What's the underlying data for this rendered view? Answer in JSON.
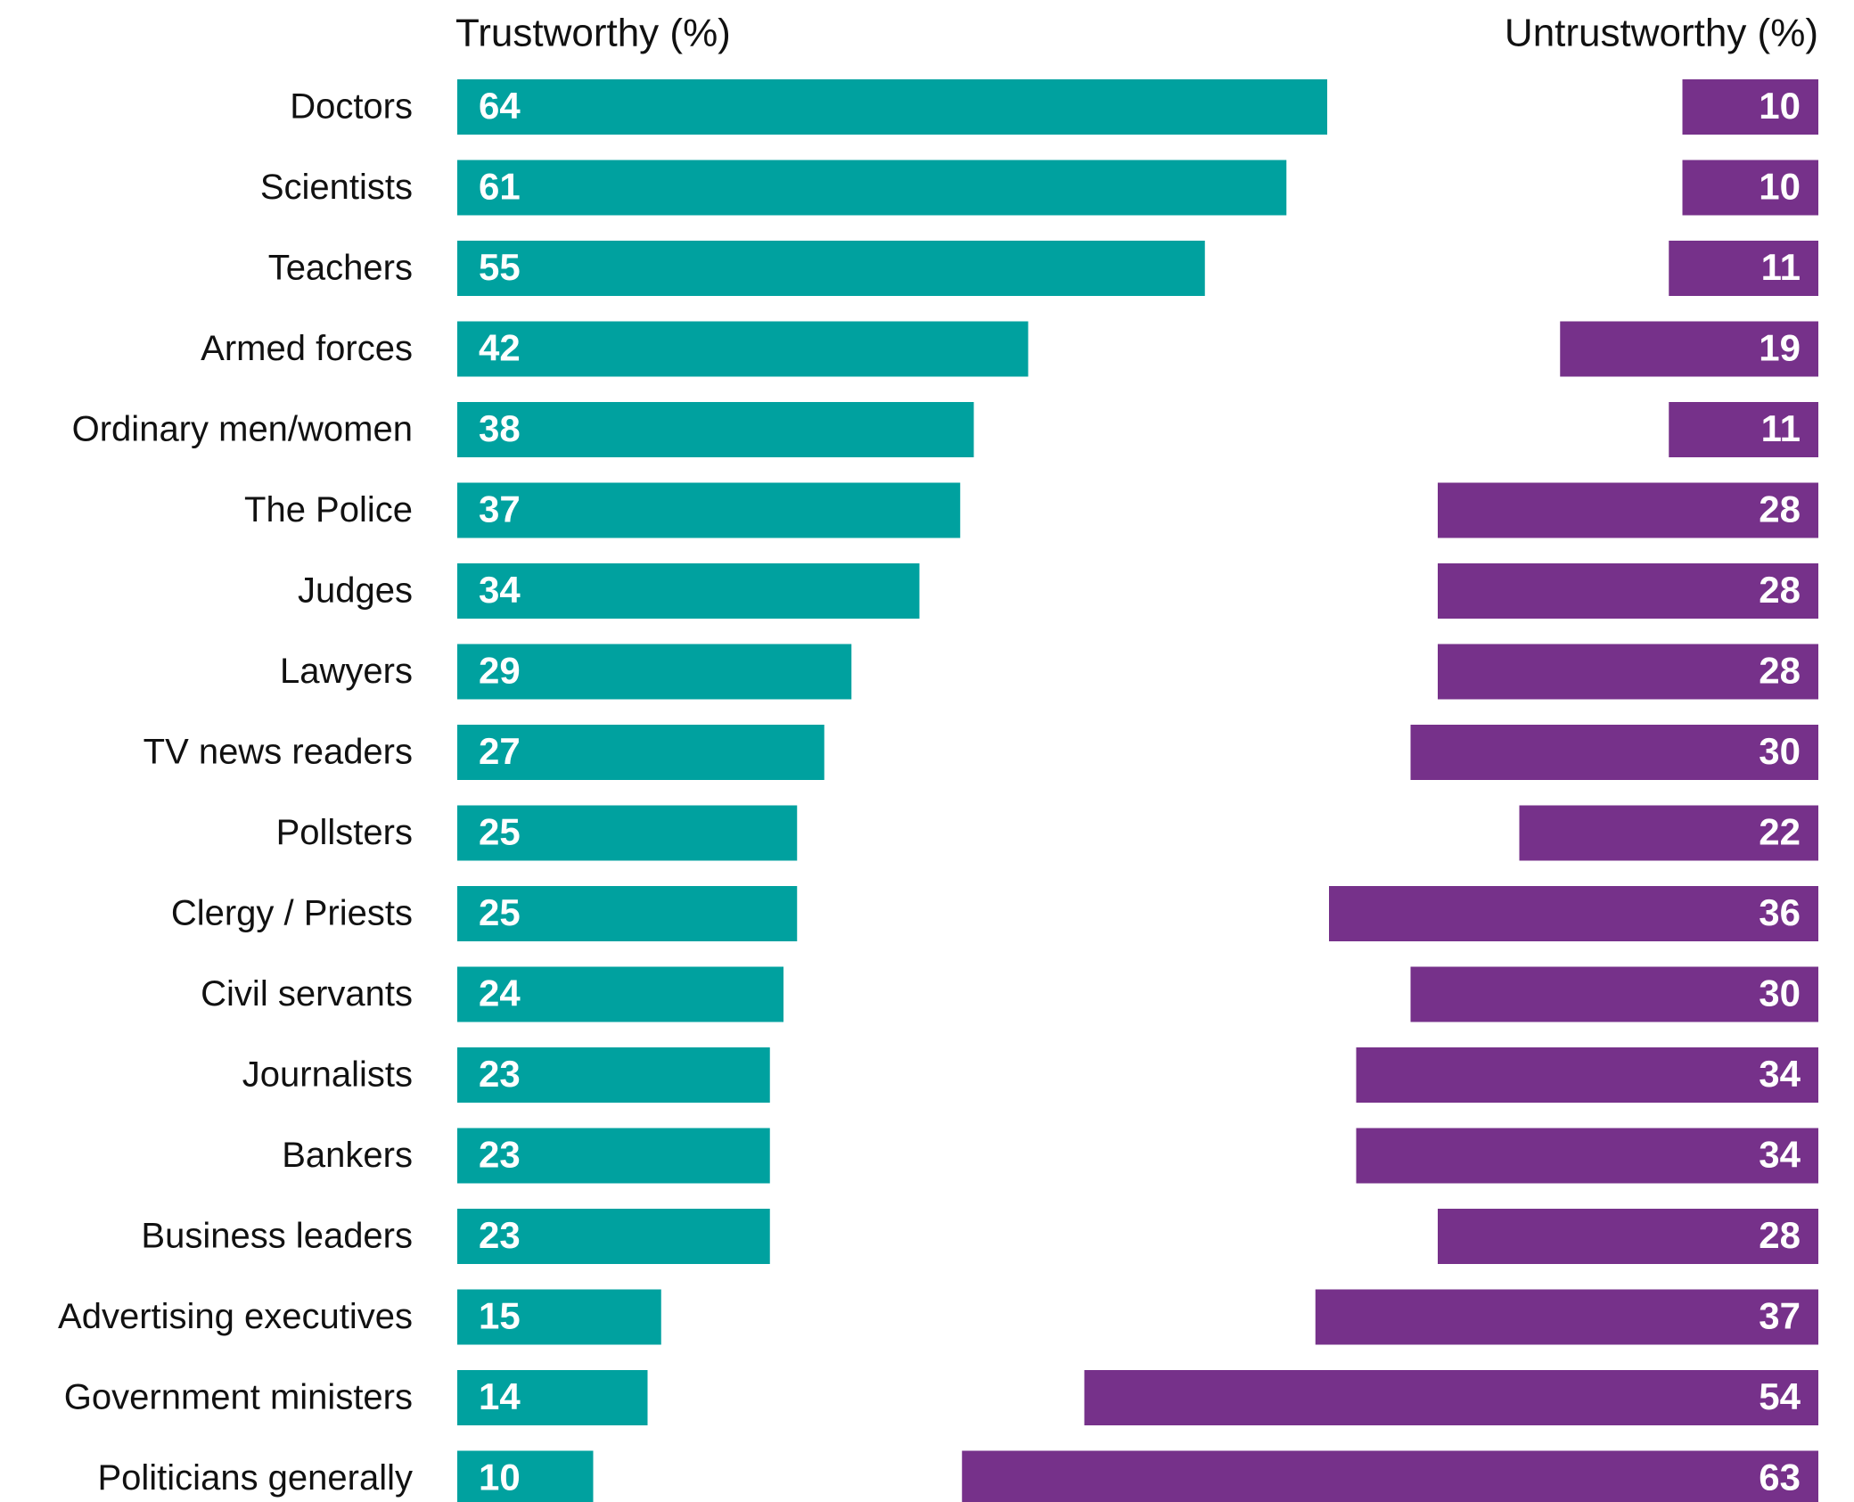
{
  "chart_data": {
    "type": "bar",
    "categories": [
      "Doctors",
      "Scientists",
      "Teachers",
      "Armed forces",
      "Ordinary men/women",
      "The Police",
      "Judges",
      "Lawyers",
      "TV news readers",
      "Pollsters",
      "Clergy / Priests",
      "Civil servants",
      "Journalists",
      "Bankers",
      "Business leaders",
      "Advertising executives",
      "Government ministers",
      "Politicians generally"
    ],
    "series": [
      {
        "name": "Trustworthy (%)",
        "color": "#00a19f",
        "values": [
          64,
          61,
          55,
          42,
          38,
          37,
          34,
          29,
          27,
          25,
          25,
          24,
          23,
          23,
          23,
          15,
          14,
          10
        ]
      },
      {
        "name": "Untrustworthy (%)",
        "color": "#76318a",
        "values": [
          10,
          10,
          11,
          19,
          11,
          28,
          28,
          28,
          30,
          22,
          36,
          30,
          34,
          34,
          28,
          37,
          54,
          63
        ]
      }
    ]
  }
}
